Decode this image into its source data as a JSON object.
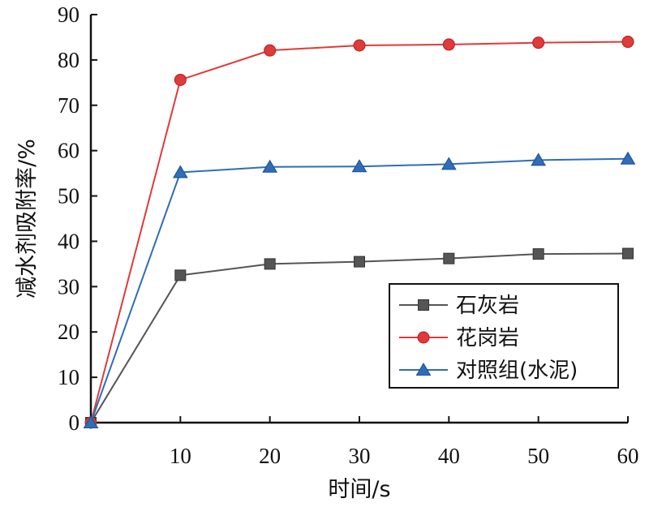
{
  "chart_data": {
    "type": "line",
    "x": [
      0,
      10,
      20,
      30,
      40,
      50,
      60
    ],
    "x_tick_labels": [
      "10",
      "20",
      "30",
      "40",
      "50",
      "60"
    ],
    "y_tick_labels": [
      "0",
      "10",
      "20",
      "30",
      "40",
      "50",
      "60",
      "70",
      "80",
      "90"
    ],
    "xlabel": "时间/s",
    "ylabel": "减水剂吸附率/%",
    "xlim": [
      0,
      60
    ],
    "ylim": [
      0,
      90
    ],
    "grid": false,
    "legend_position": "bottom-right",
    "series": [
      {
        "name": "石灰岩",
        "color": "#555555",
        "marker": "square",
        "values": [
          0,
          32.5,
          35,
          35.5,
          36.2,
          37.2,
          37.3
        ]
      },
      {
        "name": "花岗岩",
        "color": "#e03a3a",
        "marker": "circle",
        "values": [
          0,
          75.6,
          82.1,
          83.2,
          83.4,
          83.8,
          84.0
        ]
      },
      {
        "name": "对照组(水泥)",
        "color": "#2f6db8",
        "marker": "triangle",
        "values": [
          0,
          55.2,
          56.4,
          56.5,
          57.0,
          57.9,
          58.2
        ]
      }
    ]
  }
}
